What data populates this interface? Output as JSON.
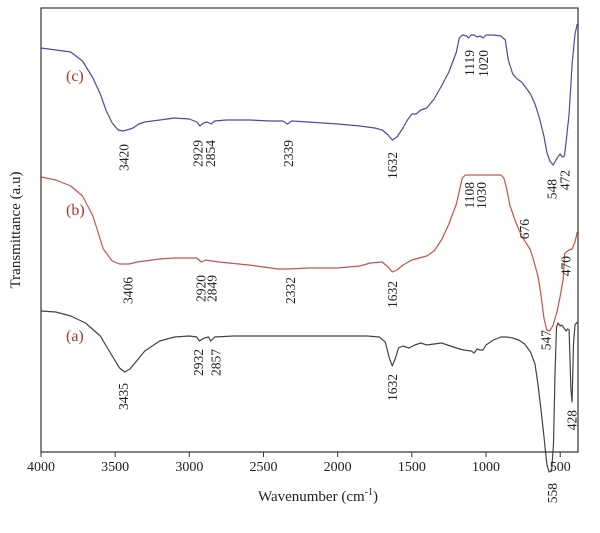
{
  "chart_data": {
    "type": "line",
    "title": "",
    "xlabel": "Wavenumber (cm",
    "xlabel_sup": "-1",
    "xlabel_close": ")",
    "ylabel": "Transmittance (a.u)",
    "xlim": [
      4000,
      380
    ],
    "x_reversed": true,
    "x_ticks": [
      4000,
      3500,
      3000,
      2500,
      2000,
      1500,
      1000,
      500
    ],
    "y_ticks": [],
    "grid": false,
    "legend": "none",
    "series": [
      {
        "label": "(c)",
        "color": "#4a4aa8",
        "label_color": "#b5332a",
        "points": [
          [
            4000,
            -4
          ],
          [
            3800,
            -8
          ],
          [
            3720,
            -17
          ],
          [
            3650,
            -34
          ],
          [
            3600,
            -50
          ],
          [
            3560,
            -67
          ],
          [
            3520,
            -79
          ],
          [
            3480,
            -86
          ],
          [
            3450,
            -87
          ],
          [
            3420,
            -86
          ],
          [
            3380,
            -84
          ],
          [
            3340,
            -80
          ],
          [
            3300,
            -78
          ],
          [
            3200,
            -76
          ],
          [
            3100,
            -74
          ],
          [
            3000,
            -75
          ],
          [
            2950,
            -78
          ],
          [
            2929,
            -82
          ],
          [
            2905,
            -79
          ],
          [
            2880,
            -78
          ],
          [
            2854,
            -80
          ],
          [
            2830,
            -77
          ],
          [
            2750,
            -76
          ],
          [
            2600,
            -76
          ],
          [
            2450,
            -77
          ],
          [
            2370,
            -77
          ],
          [
            2339,
            -80
          ],
          [
            2310,
            -77
          ],
          [
            2200,
            -78
          ],
          [
            2000,
            -80
          ],
          [
            1850,
            -82
          ],
          [
            1750,
            -84
          ],
          [
            1700,
            -86
          ],
          [
            1660,
            -91
          ],
          [
            1632,
            -96
          ],
          [
            1600,
            -93
          ],
          [
            1560,
            -84
          ],
          [
            1530,
            -76
          ],
          [
            1500,
            -70
          ],
          [
            1470,
            -70
          ],
          [
            1440,
            -66
          ],
          [
            1400,
            -64
          ],
          [
            1350,
            -55
          ],
          [
            1300,
            -42
          ],
          [
            1250,
            -28
          ],
          [
            1200,
            -8
          ],
          [
            1180,
            6
          ],
          [
            1160,
            9
          ],
          [
            1130,
            8
          ],
          [
            1119,
            6
          ],
          [
            1100,
            9
          ],
          [
            1080,
            9
          ],
          [
            1060,
            7
          ],
          [
            1040,
            8
          ],
          [
            1020,
            6
          ],
          [
            1000,
            9
          ],
          [
            950,
            9
          ],
          [
            900,
            8
          ],
          [
            870,
            4
          ],
          [
            850,
            -16
          ],
          [
            820,
            -30
          ],
          [
            790,
            -35
          ],
          [
            760,
            -38
          ],
          [
            730,
            -44
          ],
          [
            700,
            -50
          ],
          [
            670,
            -60
          ],
          [
            640,
            -74
          ],
          [
            610,
            -92
          ],
          [
            590,
            -108
          ],
          [
            570,
            -117
          ],
          [
            548,
            -121
          ],
          [
            520,
            -114
          ],
          [
            500,
            -110
          ],
          [
            485,
            -113
          ],
          [
            472,
            -112
          ],
          [
            460,
            -98
          ],
          [
            440,
            -70
          ],
          [
            420,
            -20
          ],
          [
            400,
            10
          ],
          [
            385,
            20
          ]
        ]
      },
      {
        "label": "(b)",
        "color": "#c9534a",
        "label_color": "#b5332a",
        "points": [
          [
            4000,
            -133
          ],
          [
            3900,
            -136
          ],
          [
            3800,
            -142
          ],
          [
            3720,
            -152
          ],
          [
            3650,
            -172
          ],
          [
            3580,
            -205
          ],
          [
            3520,
            -217
          ],
          [
            3470,
            -220
          ],
          [
            3406,
            -220
          ],
          [
            3350,
            -218
          ],
          [
            3300,
            -217
          ],
          [
            3200,
            -215
          ],
          [
            3100,
            -214
          ],
          [
            2950,
            -214
          ],
          [
            2920,
            -218
          ],
          [
            2890,
            -216
          ],
          [
            2849,
            -217
          ],
          [
            2800,
            -218
          ],
          [
            2600,
            -221
          ],
          [
            2500,
            -223
          ],
          [
            2400,
            -225
          ],
          [
            2332,
            -225
          ],
          [
            2200,
            -224
          ],
          [
            2000,
            -224
          ],
          [
            1850,
            -222
          ],
          [
            1780,
            -219
          ],
          [
            1700,
            -218
          ],
          [
            1660,
            -223
          ],
          [
            1632,
            -228
          ],
          [
            1600,
            -226
          ],
          [
            1560,
            -221
          ],
          [
            1500,
            -216
          ],
          [
            1450,
            -214
          ],
          [
            1400,
            -212
          ],
          [
            1350,
            -207
          ],
          [
            1300,
            -196
          ],
          [
            1250,
            -180
          ],
          [
            1200,
            -160
          ],
          [
            1160,
            -134
          ],
          [
            1140,
            -131
          ],
          [
            1108,
            -131
          ],
          [
            1080,
            -131
          ],
          [
            1030,
            -131
          ],
          [
            1000,
            -131
          ],
          [
            950,
            -131
          ],
          [
            900,
            -131
          ],
          [
            880,
            -134
          ],
          [
            860,
            -145
          ],
          [
            840,
            -161
          ],
          [
            800,
            -178
          ],
          [
            760,
            -192
          ],
          [
            700,
            -206
          ],
          [
            676,
            -218
          ],
          [
            650,
            -232
          ],
          [
            630,
            -250
          ],
          [
            610,
            -274
          ],
          [
            590,
            -286
          ],
          [
            570,
            -287
          ],
          [
            547,
            -281
          ],
          [
            520,
            -267
          ],
          [
            500,
            -252
          ],
          [
            480,
            -235
          ],
          [
            470,
            -210
          ],
          [
            460,
            -208
          ],
          [
            440,
            -206
          ],
          [
            420,
            -205
          ],
          [
            400,
            -198
          ],
          [
            385,
            -188
          ]
        ]
      },
      {
        "label": "(a)",
        "color": "#444444",
        "label_color": "#b5332a",
        "points": [
          [
            4000,
            -267
          ],
          [
            3900,
            -268
          ],
          [
            3800,
            -272
          ],
          [
            3700,
            -279
          ],
          [
            3600,
            -292
          ],
          [
            3520,
            -312
          ],
          [
            3470,
            -324
          ],
          [
            3435,
            -328
          ],
          [
            3400,
            -325
          ],
          [
            3350,
            -316
          ],
          [
            3300,
            -307
          ],
          [
            3200,
            -297
          ],
          [
            3100,
            -293
          ],
          [
            3000,
            -292
          ],
          [
            2950,
            -293
          ],
          [
            2932,
            -297
          ],
          [
            2900,
            -294
          ],
          [
            2870,
            -293
          ],
          [
            2857,
            -297
          ],
          [
            2830,
            -293
          ],
          [
            2700,
            -292
          ],
          [
            2500,
            -292
          ],
          [
            2300,
            -292
          ],
          [
            2100,
            -292
          ],
          [
            1900,
            -292
          ],
          [
            1800,
            -292
          ],
          [
            1720,
            -293
          ],
          [
            1680,
            -298
          ],
          [
            1650,
            -315
          ],
          [
            1632,
            -322
          ],
          [
            1610,
            -314
          ],
          [
            1590,
            -304
          ],
          [
            1560,
            -302
          ],
          [
            1520,
            -304
          ],
          [
            1480,
            -301
          ],
          [
            1440,
            -299
          ],
          [
            1400,
            -301
          ],
          [
            1350,
            -300
          ],
          [
            1300,
            -299
          ],
          [
            1260,
            -301
          ],
          [
            1200,
            -304
          ],
          [
            1150,
            -306
          ],
          [
            1100,
            -307
          ],
          [
            1080,
            -309
          ],
          [
            1060,
            -305
          ],
          [
            1040,
            -306
          ],
          [
            1020,
            -306
          ],
          [
            1000,
            -301
          ],
          [
            950,
            -296
          ],
          [
            900,
            -293
          ],
          [
            860,
            -293
          ],
          [
            820,
            -294
          ],
          [
            780,
            -296
          ],
          [
            740,
            -300
          ],
          [
            700,
            -308
          ],
          [
            670,
            -320
          ],
          [
            650,
            -340
          ],
          [
            630,
            -365
          ],
          [
            610,
            -392
          ],
          [
            590,
            -420
          ],
          [
            575,
            -428
          ],
          [
            558,
            -427
          ],
          [
            545,
            -400
          ],
          [
            535,
            -330
          ],
          [
            525,
            -283
          ],
          [
            515,
            -279
          ],
          [
            500,
            -282
          ],
          [
            490,
            -281
          ],
          [
            475,
            -284
          ],
          [
            460,
            -287
          ],
          [
            450,
            -285
          ],
          [
            440,
            -286
          ],
          [
            428,
            -345
          ],
          [
            420,
            -358
          ],
          [
            410,
            -300
          ],
          [
            400,
            -281
          ],
          [
            385,
            -278
          ]
        ]
      }
    ],
    "peak_labels": [
      {
        "series": 0,
        "text": "3420",
        "x": 3440,
        "top": -100
      },
      {
        "series": 0,
        "text": "2929",
        "x": 2940,
        "top": -96
      },
      {
        "series": 0,
        "text": "2854",
        "x": 2858,
        "top": -96
      },
      {
        "series": 0,
        "text": "2339",
        "x": 2330,
        "top": -96
      },
      {
        "series": 0,
        "text": "1632",
        "x": 1630,
        "top": -108
      },
      {
        "series": 0,
        "text": "1119",
        "x": 1112,
        "top": -6
      },
      {
        "series": 0,
        "text": "1020",
        "x": 1016,
        "top": -6
      },
      {
        "series": 0,
        "text": "548",
        "x": 555,
        "top": -135
      },
      {
        "series": 0,
        "text": "472",
        "x": 468,
        "top": -126
      },
      {
        "series": 1,
        "text": "3406",
        "x": 3415,
        "top": -233
      },
      {
        "series": 1,
        "text": "2920",
        "x": 2922,
        "top": -231
      },
      {
        "series": 1,
        "text": "2849",
        "x": 2848,
        "top": -231
      },
      {
        "series": 1,
        "text": "2332",
        "x": 2318,
        "top": -233
      },
      {
        "series": 1,
        "text": "1632",
        "x": 1630,
        "top": -237
      },
      {
        "series": 1,
        "text": "1108",
        "x": 1112,
        "top": -138
      },
      {
        "series": 1,
        "text": "1030",
        "x": 1030,
        "top": -138
      },
      {
        "series": 1,
        "text": "676",
        "x": 740,
        "top": -175
      },
      {
        "series": 1,
        "text": "547",
        "x": 595,
        "top": -286
      },
      {
        "series": 1,
        "text": "470",
        "x": 462,
        "top": -212
      },
      {
        "series": 2,
        "text": "3435",
        "x": 3445,
        "top": -339
      },
      {
        "series": 2,
        "text": "2932",
        "x": 2938,
        "top": -305
      },
      {
        "series": 2,
        "text": "2857",
        "x": 2820,
        "top": -305
      },
      {
        "series": 2,
        "text": "1632",
        "x": 1630,
        "top": -330
      },
      {
        "series": 2,
        "text": "558",
        "x": 552,
        "top": -439
      },
      {
        "series": 2,
        "text": "428",
        "x": 420,
        "top": -366
      }
    ]
  }
}
